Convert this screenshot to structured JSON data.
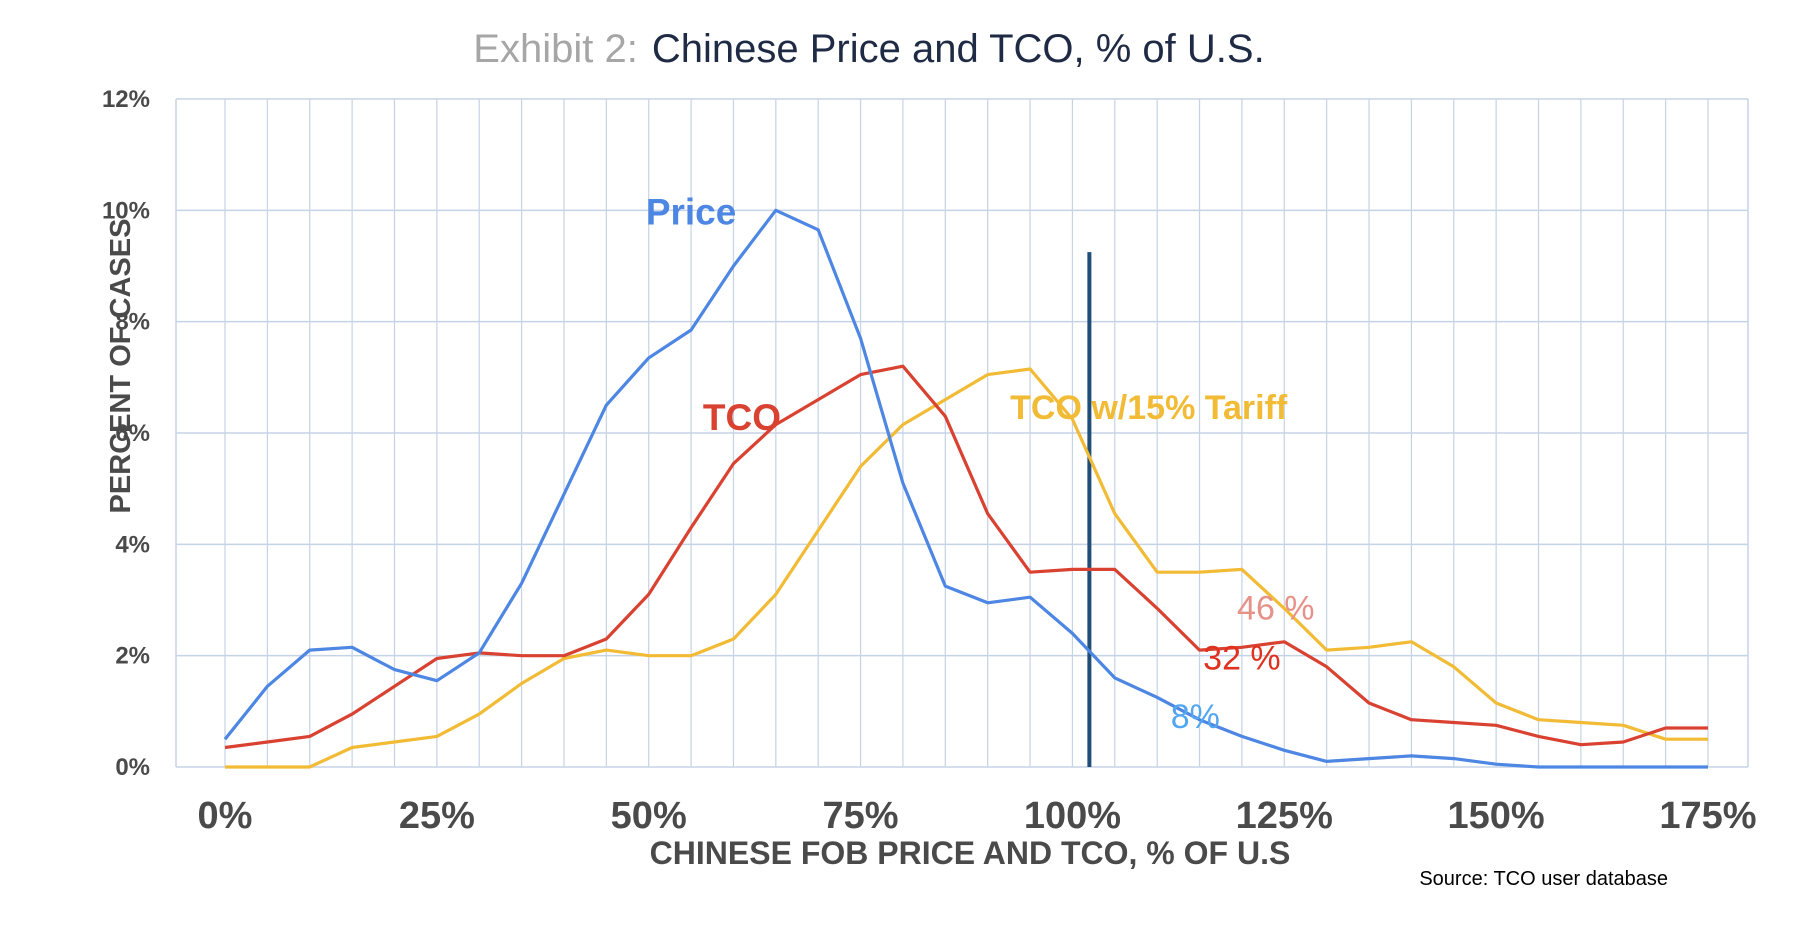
{
  "title": {
    "prefix": "Exhibit 2:",
    "main": "Chinese Price and TCO, % of U.S."
  },
  "source": "Source: TCO user database",
  "colors": {
    "price": "#4d86e3",
    "tco": "#d94130",
    "tariff": "#f2bb35",
    "marker": "#1f4e79",
    "pct46": "#e69288",
    "pct32": "#e0301e",
    "pct8": "#53a6f0",
    "grid": "#c5d3e6"
  },
  "chart_data": {
    "type": "line",
    "title": "Exhibit 2: Chinese Price and TCO, % of U.S.",
    "xlabel": "CHINESE FOB PRICE AND TCO, % OF U.S",
    "ylabel": "PERCENT OF CASES",
    "xlim": [
      0,
      175
    ],
    "ylim": [
      0,
      12
    ],
    "x_ticks": [
      0,
      25,
      50,
      75,
      100,
      125,
      150,
      175
    ],
    "x_tick_labels": [
      "0%",
      "25%",
      "50%",
      "75%",
      "100%",
      "125%",
      "150%",
      "175%"
    ],
    "y_ticks": [
      0,
      2,
      4,
      6,
      8,
      10,
      12
    ],
    "y_tick_labels": [
      "0%",
      "2%",
      "4%",
      "6%",
      "8%",
      "10%",
      "12%"
    ],
    "grid": true,
    "x": [
      0,
      5,
      10,
      15,
      20,
      25,
      30,
      35,
      40,
      45,
      50,
      55,
      60,
      65,
      70,
      75,
      80,
      85,
      90,
      95,
      100,
      105,
      110,
      115,
      120,
      125,
      130,
      135,
      140,
      145,
      150,
      155,
      160,
      165,
      170,
      175
    ],
    "series": [
      {
        "name": "Price",
        "color": "#4d86e3",
        "values": [
          0.5,
          1.45,
          2.1,
          2.15,
          1.75,
          1.55,
          2.05,
          3.3,
          4.9,
          6.5,
          7.35,
          7.85,
          9.0,
          10.0,
          9.65,
          7.7,
          5.1,
          3.25,
          2.95,
          3.05,
          2.4,
          1.6,
          1.25,
          0.85,
          0.55,
          0.3,
          0.1,
          0.15,
          0.2,
          0.15,
          0.05,
          0.0,
          0.0,
          0.0,
          0.0,
          0.0
        ]
      },
      {
        "name": "TCO",
        "color": "#d94130",
        "values": [
          0.35,
          0.45,
          0.55,
          0.95,
          1.45,
          1.95,
          2.05,
          2.0,
          2.0,
          2.3,
          3.1,
          4.3,
          5.45,
          6.15,
          6.6,
          7.05,
          7.2,
          6.3,
          4.55,
          3.5,
          3.55,
          3.55,
          2.85,
          2.1,
          2.15,
          2.25,
          1.8,
          1.15,
          0.85,
          0.8,
          0.75,
          0.55,
          0.4,
          0.45,
          0.7,
          0.7
        ]
      },
      {
        "name": "TCO  w/15% Tariff",
        "color": "#f2bb35",
        "values": [
          0.0,
          0.0,
          0.0,
          0.35,
          0.45,
          0.55,
          0.95,
          1.5,
          1.95,
          2.1,
          2.0,
          2.0,
          2.3,
          3.1,
          4.25,
          5.4,
          6.15,
          6.6,
          7.05,
          7.15,
          6.25,
          4.55,
          3.5,
          3.5,
          3.55,
          2.85,
          2.1,
          2.15,
          2.25,
          1.8,
          1.15,
          0.85,
          0.8,
          0.75,
          0.5,
          0.5
        ]
      }
    ],
    "vertical_line": {
      "x": 102,
      "y_top": 9.25,
      "y_bottom": 0
    },
    "annotations": [
      {
        "text": "Price",
        "series": "Price",
        "x": 55,
        "y": 9.75
      },
      {
        "text": "TCO",
        "series": "TCO",
        "x": 61,
        "y": 6.05
      },
      {
        "text": "TCO  w/15% Tariff",
        "series": "TCO  w/15% Tariff",
        "x": 109,
        "y": 6.25
      },
      {
        "text": "46 %",
        "x": 124,
        "y": 2.65
      },
      {
        "text": "32 %",
        "x": 120,
        "y": 1.75
      },
      {
        "text": "8%",
        "x": 114.5,
        "y": 0.7
      }
    ]
  }
}
